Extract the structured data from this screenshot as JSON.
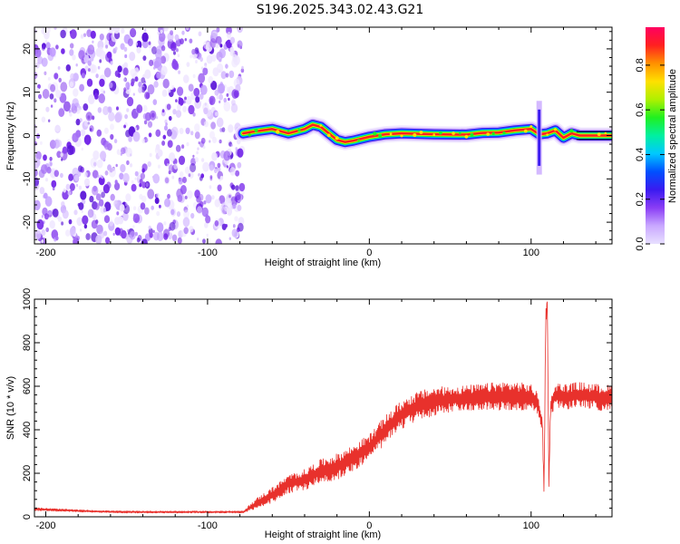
{
  "title": "S196.2025.343.02.43.G21",
  "colors": {
    "trace": "#e8312c",
    "axis": "#000000",
    "noise": "#7b2cf0"
  },
  "colormap_stops": [
    "#e8e0ff",
    "#c9a8ff",
    "#8a3df5",
    "#3a1af0",
    "#0050ff",
    "#00c8ff",
    "#00f0a0",
    "#20f020",
    "#b0f000",
    "#ffe000",
    "#ff9000",
    "#ff2020",
    "#ff0060"
  ],
  "chart_data": [
    {
      "type": "heatmap",
      "xlabel": "Height of straight line (km)",
      "ylabel": "Frequency (Hz)",
      "xlim": [
        -207,
        150
      ],
      "ylim": [
        -25,
        25
      ],
      "xticks": [
        -200,
        -100,
        0,
        100
      ],
      "xtick_labels": [
        "-200",
        "-100",
        "0",
        "100"
      ],
      "yticks": [
        -20,
        -10,
        0,
        10,
        20
      ],
      "ytick_labels": [
        "-20",
        "-10",
        "0",
        "10",
        "20"
      ],
      "noise_region_x": [
        -207,
        -78
      ],
      "ridge_x": [
        -78,
        -70,
        -60,
        -50,
        -40,
        -35,
        -30,
        -25,
        -20,
        -15,
        -10,
        0,
        10,
        20,
        40,
        60,
        70,
        80,
        90,
        100,
        105,
        110,
        115,
        120,
        125,
        130,
        150
      ],
      "ridge_freq": [
        0.5,
        1.0,
        1.5,
        0.5,
        1.5,
        2.5,
        2.0,
        0.5,
        -1.0,
        -1.5,
        -1.2,
        -0.3,
        0.3,
        0.5,
        0.3,
        0.2,
        0.6,
        0.7,
        1.2,
        1.5,
        0.3,
        0.5,
        1.2,
        -0.5,
        0.5,
        0.0,
        0.0
      ],
      "colorbar": {
        "label": "Normalized spectral amplitude",
        "range": [
          0,
          0.97
        ],
        "ticks": [
          0.0,
          0.2,
          0.4,
          0.6,
          0.8
        ],
        "tick_labels": [
          "0.0",
          "0.2",
          "0.4",
          "0.6",
          "0.8"
        ]
      }
    },
    {
      "type": "line",
      "xlabel": "Height of straight line (km)",
      "ylabel": "SNR (10 * v/v)",
      "xlim": [
        -207,
        150
      ],
      "ylim": [
        0,
        1000
      ],
      "xticks": [
        -200,
        -100,
        0,
        100
      ],
      "xtick_labels": [
        "-200",
        "-100",
        "0",
        "100"
      ],
      "yticks": [
        0,
        200,
        400,
        600,
        800,
        1000
      ],
      "ytick_labels": [
        "0",
        "200",
        "400",
        "600",
        "800",
        "1000"
      ],
      "series": [
        {
          "name": "SNR",
          "x": [
            -207,
            -190,
            -170,
            -150,
            -130,
            -110,
            -90,
            -78,
            -70,
            -60,
            -50,
            -40,
            -30,
            -20,
            -10,
            0,
            10,
            20,
            30,
            40,
            50,
            60,
            70,
            80,
            90,
            100,
            104,
            107,
            108,
            109,
            110,
            111,
            112,
            115,
            120,
            130,
            140,
            150
          ],
          "y": [
            35,
            30,
            25,
            22,
            22,
            22,
            22,
            22,
            60,
            100,
            150,
            170,
            210,
            230,
            270,
            320,
            400,
            470,
            510,
            530,
            540,
            545,
            550,
            555,
            555,
            550,
            520,
            430,
            100,
            900,
            1000,
            150,
            500,
            560,
            550,
            560,
            550,
            545
          ],
          "amplitude": [
            12,
            10,
            8,
            8,
            8,
            8,
            8,
            8,
            40,
            60,
            70,
            80,
            90,
            100,
            100,
            100,
            110,
            110,
            110,
            110,
            100,
            100,
            100,
            110,
            110,
            100,
            80,
            60,
            40,
            80,
            40,
            40,
            60,
            100,
            100,
            100,
            100,
            100
          ]
        }
      ]
    }
  ]
}
